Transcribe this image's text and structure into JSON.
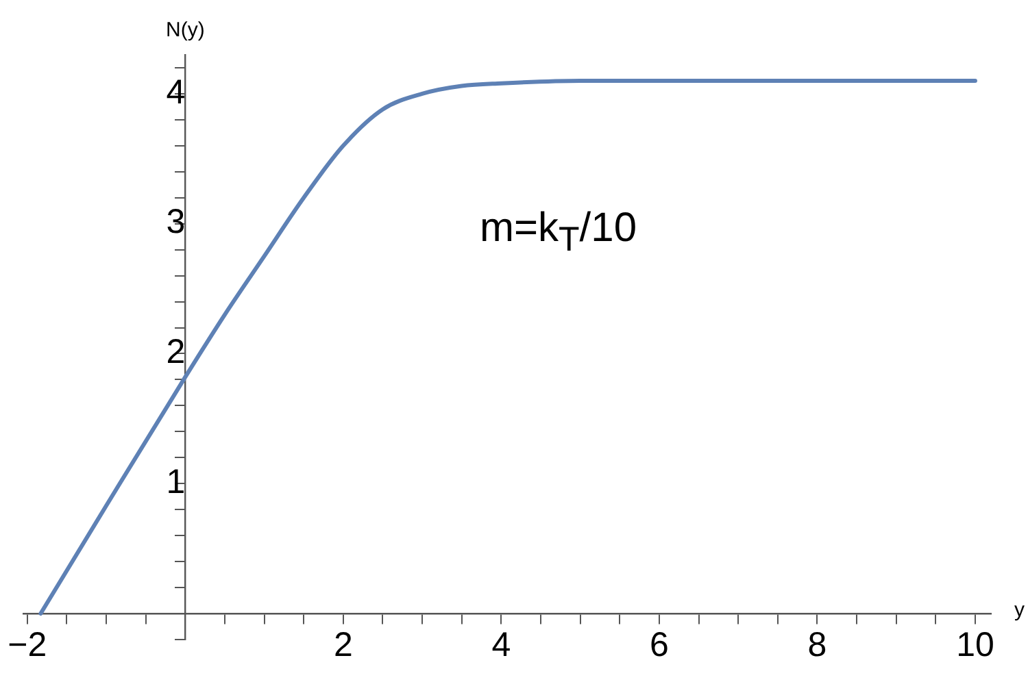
{
  "chart_data": {
    "type": "line",
    "xlabel": "y",
    "ylabel": "N(y)",
    "annotations": [
      "m=k$_{T}$/10"
    ],
    "series": [
      {
        "color": "#5e81b5",
        "x": [
          -1.83,
          -1,
          0,
          0.5,
          1,
          1.5,
          2,
          2.5,
          3,
          3.5,
          4,
          5,
          6,
          8,
          10
        ],
        "values": [
          0,
          0.83,
          1.82,
          2.3,
          2.75,
          3.2,
          3.6,
          3.88,
          4.0,
          4.06,
          4.08,
          4.1,
          4.1,
          4.1,
          4.1
        ]
      }
    ],
    "xlim": [
      -2.05,
      10.2
    ],
    "ylim": [
      -0.2,
      4.3
    ],
    "xticks": [
      -2,
      {
        "value": -1.5,
        "label": null
      },
      {
        "value": -1,
        "label": null
      },
      {
        "value": -0.5,
        "label": null
      },
      {
        "value": 0,
        "label": null
      },
      {
        "value": 0.5,
        "label": null
      },
      {
        "value": 1,
        "label": null
      },
      {
        "value": 1.5,
        "label": null
      },
      2,
      {
        "value": 2.5,
        "label": null
      },
      {
        "value": 3,
        "label": null
      },
      {
        "value": 3.5,
        "label": null
      },
      4,
      {
        "value": 4.5,
        "label": null
      },
      {
        "value": 5,
        "label": null
      },
      {
        "value": 5.5,
        "label": null
      },
      6,
      {
        "value": 6.5,
        "label": null
      },
      {
        "value": 7,
        "label": null
      },
      {
        "value": 7.5,
        "label": null
      },
      8,
      {
        "value": 8.5,
        "label": null
      },
      {
        "value": 9,
        "label": null
      },
      {
        "value": 9.5,
        "label": null
      },
      10
    ],
    "yticks": [
      {
        "value": -0.2,
        "label": null
      },
      {
        "value": 0.2,
        "label": null
      },
      {
        "value": 0.4,
        "label": null
      },
      {
        "value": 0.6,
        "label": null
      },
      {
        "value": 0.8,
        "label": null
      },
      1,
      {
        "value": 1.2,
        "label": null
      },
      {
        "value": 1.4,
        "label": null
      },
      {
        "value": 1.6,
        "label": null
      },
      {
        "value": 1.8,
        "label": null
      },
      2,
      {
        "value": 2.2,
        "label": null
      },
      {
        "value": 2.4,
        "label": null
      },
      {
        "value": 2.6,
        "label": null
      },
      {
        "value": 2.8,
        "label": null
      },
      3,
      {
        "value": 3.2,
        "label": null
      },
      {
        "value": 3.4,
        "label": null
      },
      {
        "value": 3.6,
        "label": null
      },
      {
        "value": 3.8,
        "label": null
      },
      4,
      {
        "value": 4.2,
        "label": null
      }
    ],
    "grid": false,
    "legend": false,
    "marker": "none",
    "line_style": "solid"
  }
}
